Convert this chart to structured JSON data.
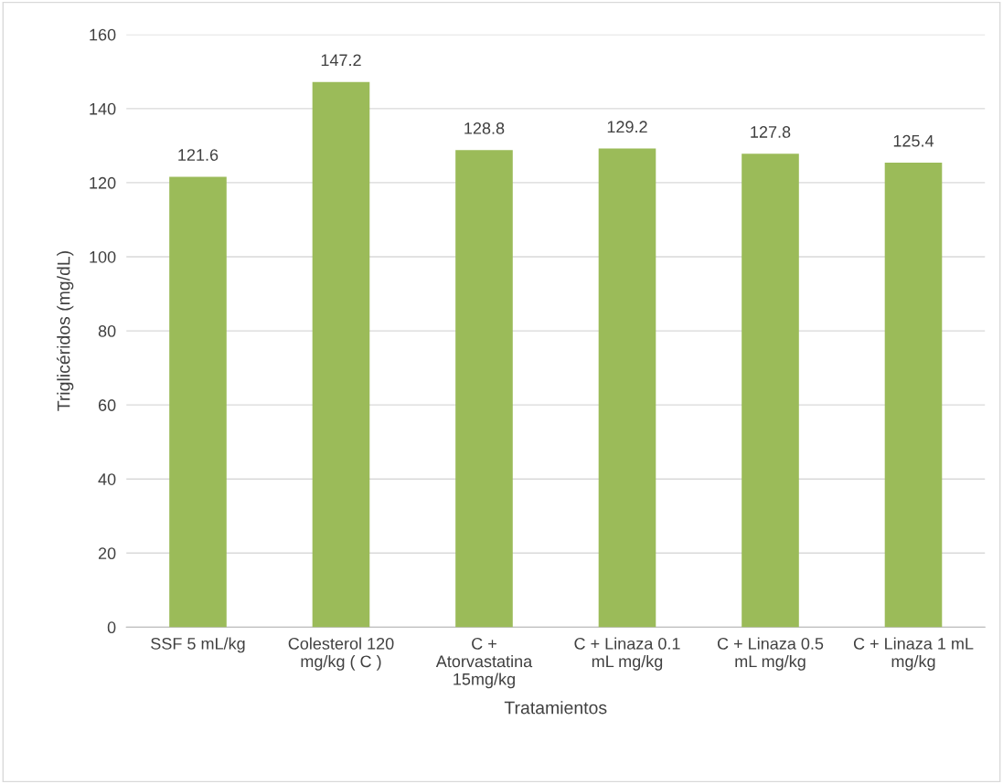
{
  "chart_data": {
    "type": "bar",
    "categories": [
      "SSF 5 mL/kg",
      "Colesterol 120\nmg/kg ( C )",
      "C +\nAtorvastatina\n15mg/kg",
      "C + Linaza 0.1\nmL mg/kg",
      "C + Linaza 0.5\nmL mg/kg",
      "C + Linaza 1 mL\nmg/kg"
    ],
    "values": [
      121.6,
      147.2,
      128.8,
      129.2,
      127.8,
      125.4
    ],
    "color": "#9bbb59",
    "xlabel": "Tratamientos",
    "ylabel": "Triglicéridos (mg/dL)",
    "ylim": [
      0,
      160
    ],
    "yticks": [
      0,
      20,
      40,
      60,
      80,
      100,
      120,
      140,
      160
    ],
    "grid": "y",
    "data_labels": true
  }
}
